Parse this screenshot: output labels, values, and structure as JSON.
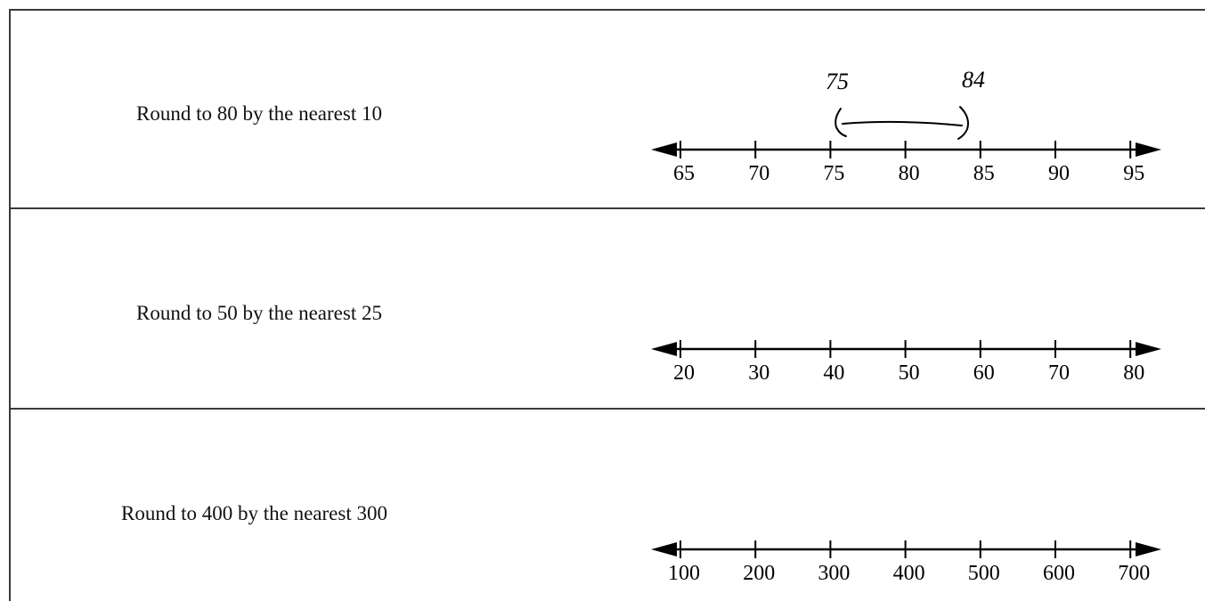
{
  "rows": [
    {
      "prompt": "Round to 80 by the nearest 10",
      "ticks": [
        "65",
        "70",
        "75",
        "80",
        "85",
        "90",
        "95"
      ],
      "annotation": {
        "low": "75",
        "high": "84"
      }
    },
    {
      "prompt": "Round to 50 by the nearest 25",
      "ticks": [
        "20",
        "30",
        "40",
        "50",
        "60",
        "70",
        "80"
      ]
    },
    {
      "prompt": "Round to 400 by the nearest 300",
      "ticks": [
        "100",
        "200",
        "300",
        "400",
        "500",
        "600",
        "700"
      ]
    }
  ]
}
